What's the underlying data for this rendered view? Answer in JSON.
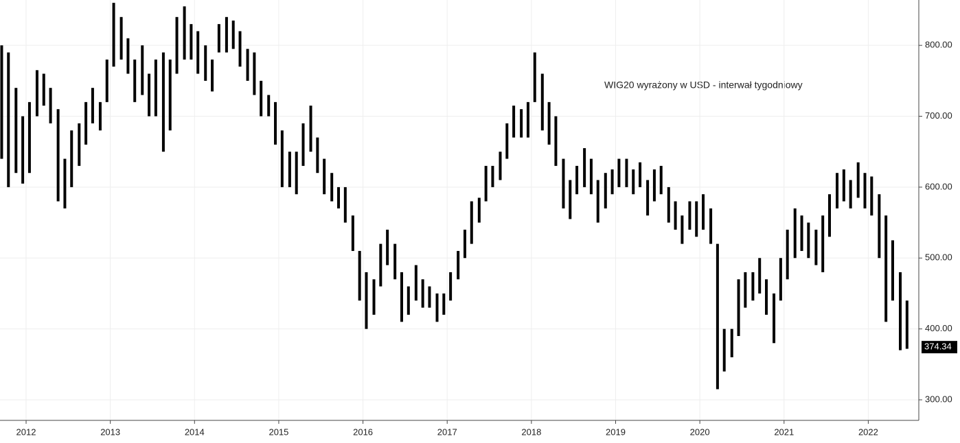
{
  "chart_data": {
    "type": "ohlc",
    "annotation": "WIG20 wyrażony w USD - interwał tygodniowy",
    "color": "#000000",
    "last_value": 374.34,
    "last_value_label": "374.34",
    "x": [
      2011.71,
      2011.79,
      2011.88,
      2011.96,
      2012.04,
      2012.13,
      2012.21,
      2012.29,
      2012.38,
      2012.46,
      2012.54,
      2012.63,
      2012.71,
      2012.79,
      2012.88,
      2012.96,
      2013.04,
      2013.13,
      2013.21,
      2013.29,
      2013.38,
      2013.46,
      2013.54,
      2013.63,
      2013.71,
      2013.79,
      2013.88,
      2013.96,
      2014.04,
      2014.13,
      2014.21,
      2014.29,
      2014.38,
      2014.46,
      2014.54,
      2014.63,
      2014.71,
      2014.79,
      2014.88,
      2014.96,
      2015.04,
      2015.13,
      2015.21,
      2015.29,
      2015.38,
      2015.46,
      2015.54,
      2015.63,
      2015.71,
      2015.79,
      2015.88,
      2015.96,
      2016.04,
      2016.13,
      2016.21,
      2016.29,
      2016.38,
      2016.46,
      2016.54,
      2016.63,
      2016.71,
      2016.79,
      2016.88,
      2016.96,
      2017.04,
      2017.13,
      2017.21,
      2017.29,
      2017.38,
      2017.46,
      2017.54,
      2017.63,
      2017.71,
      2017.79,
      2017.88,
      2017.96,
      2018.04,
      2018.13,
      2018.21,
      2018.29,
      2018.38,
      2018.46,
      2018.54,
      2018.63,
      2018.71,
      2018.79,
      2018.88,
      2018.96,
      2019.04,
      2019.13,
      2019.21,
      2019.29,
      2019.38,
      2019.46,
      2019.54,
      2019.63,
      2019.71,
      2019.79,
      2019.88,
      2019.96,
      2020.04,
      2020.13,
      2020.21,
      2020.29,
      2020.38,
      2020.46,
      2020.54,
      2020.63,
      2020.71,
      2020.79,
      2020.88,
      2020.96,
      2021.04,
      2021.13,
      2021.21,
      2021.29,
      2021.38,
      2021.46,
      2021.54,
      2021.63,
      2021.71,
      2021.79,
      2021.88,
      2021.96,
      2022.04,
      2022.13,
      2022.21,
      2022.29,
      2022.38,
      2022.46
    ],
    "high": [
      800,
      790,
      740,
      700,
      720,
      765,
      760,
      740,
      710,
      640,
      680,
      690,
      720,
      740,
      720,
      780,
      860,
      840,
      810,
      780,
      800,
      760,
      780,
      790,
      780,
      840,
      855,
      830,
      820,
      800,
      780,
      830,
      840,
      835,
      820,
      795,
      790,
      750,
      730,
      720,
      680,
      650,
      650,
      690,
      715,
      670,
      640,
      620,
      600,
      600,
      560,
      510,
      480,
      470,
      520,
      540,
      520,
      480,
      460,
      490,
      470,
      460,
      450,
      450,
      480,
      510,
      540,
      580,
      585,
      630,
      630,
      650,
      690,
      715,
      710,
      720,
      790,
      760,
      720,
      700,
      640,
      610,
      630,
      655,
      640,
      610,
      620,
      625,
      640,
      640,
      625,
      635,
      610,
      625,
      630,
      600,
      580,
      560,
      580,
      580,
      590,
      570,
      520,
      400,
      400,
      470,
      480,
      480,
      500,
      470,
      450,
      500,
      540,
      570,
      560,
      550,
      540,
      560,
      590,
      620,
      625,
      610,
      635,
      620,
      615,
      590,
      560,
      525,
      480,
      440
    ],
    "low": [
      640,
      600,
      620,
      605,
      620,
      700,
      715,
      690,
      580,
      570,
      600,
      630,
      660,
      690,
      680,
      720,
      770,
      780,
      760,
      720,
      730,
      700,
      700,
      650,
      680,
      760,
      780,
      780,
      760,
      750,
      735,
      790,
      790,
      795,
      770,
      750,
      730,
      700,
      700,
      660,
      600,
      600,
      590,
      630,
      650,
      620,
      590,
      580,
      570,
      550,
      510,
      440,
      400,
      420,
      460,
      490,
      470,
      410,
      420,
      440,
      430,
      430,
      410,
      420,
      440,
      470,
      500,
      520,
      550,
      580,
      600,
      610,
      640,
      670,
      670,
      670,
      720,
      680,
      660,
      630,
      570,
      555,
      590,
      600,
      590,
      550,
      570,
      590,
      600,
      600,
      590,
      600,
      560,
      580,
      590,
      550,
      540,
      520,
      540,
      530,
      540,
      520,
      315,
      340,
      360,
      390,
      430,
      440,
      450,
      420,
      380,
      440,
      470,
      500,
      510,
      500,
      490,
      480,
      530,
      570,
      580,
      570,
      585,
      570,
      560,
      500,
      410,
      440,
      370,
      372
    ],
    "xlim": [
      2011.69,
      2022.6
    ],
    "xticks": [
      2012,
      2013,
      2014,
      2015,
      2016,
      2017,
      2018,
      2019,
      2020,
      2021,
      2022
    ],
    "ylim": [
      271,
      864
    ],
    "yticks": [
      {
        "value": 300,
        "label": "300.00"
      },
      {
        "value": 400,
        "label": "400.00"
      },
      {
        "value": 500,
        "label": "500.00"
      },
      {
        "value": 600,
        "label": "600.00"
      },
      {
        "value": 700,
        "label": "700.00"
      },
      {
        "value": 800,
        "label": "800.00"
      }
    ],
    "grid": true
  }
}
